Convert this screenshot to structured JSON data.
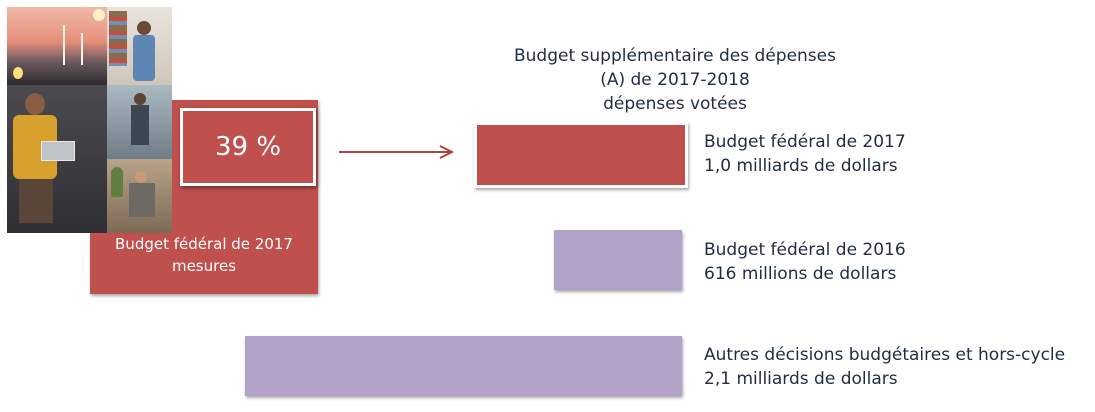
{
  "chart_data": {
    "type": "bar",
    "orientation": "horizontal",
    "title": [
      "Budget supplémentaire des dépenses",
      "(A) de 2017-2018",
      "dépenses votées"
    ],
    "unit": "milliards de dollars",
    "series": [
      {
        "category": [
          "Budget fédéral de 2017",
          "1,0 milliards de dollars"
        ],
        "value": 1.0,
        "color": "#c0504d"
      },
      {
        "category": [
          "Budget fédéral de 2016",
          "616 millions de dollars"
        ],
        "value": 0.616,
        "color": "#b3a2c7"
      },
      {
        "category": [
          "Autres décisions budgétaires et hors-cycle",
          "2,1 milliards de dollars"
        ],
        "value": 2.1,
        "color": "#b3a2c7"
      }
    ],
    "annotation": {
      "percent": "39 %",
      "label": [
        "Budget fédéral de 2017",
        "mesures"
      ],
      "color": "#c0504d"
    }
  }
}
